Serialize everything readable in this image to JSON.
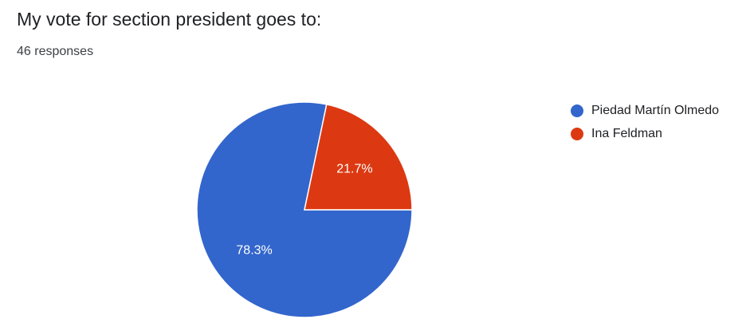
{
  "form": {
    "question_title": "My vote for section president goes to:",
    "response_count": "46 responses"
  },
  "chart_data": {
    "type": "pie",
    "categories": [
      "Piedad Martín Olmedo",
      "Ina Feldman"
    ],
    "values": [
      78.3,
      21.7
    ],
    "slice_labels": [
      "78.3%",
      "21.7%"
    ],
    "colors": [
      "#3366cc",
      "#dc3912"
    ],
    "legend_position": "right",
    "label_color": "#ffffff"
  }
}
